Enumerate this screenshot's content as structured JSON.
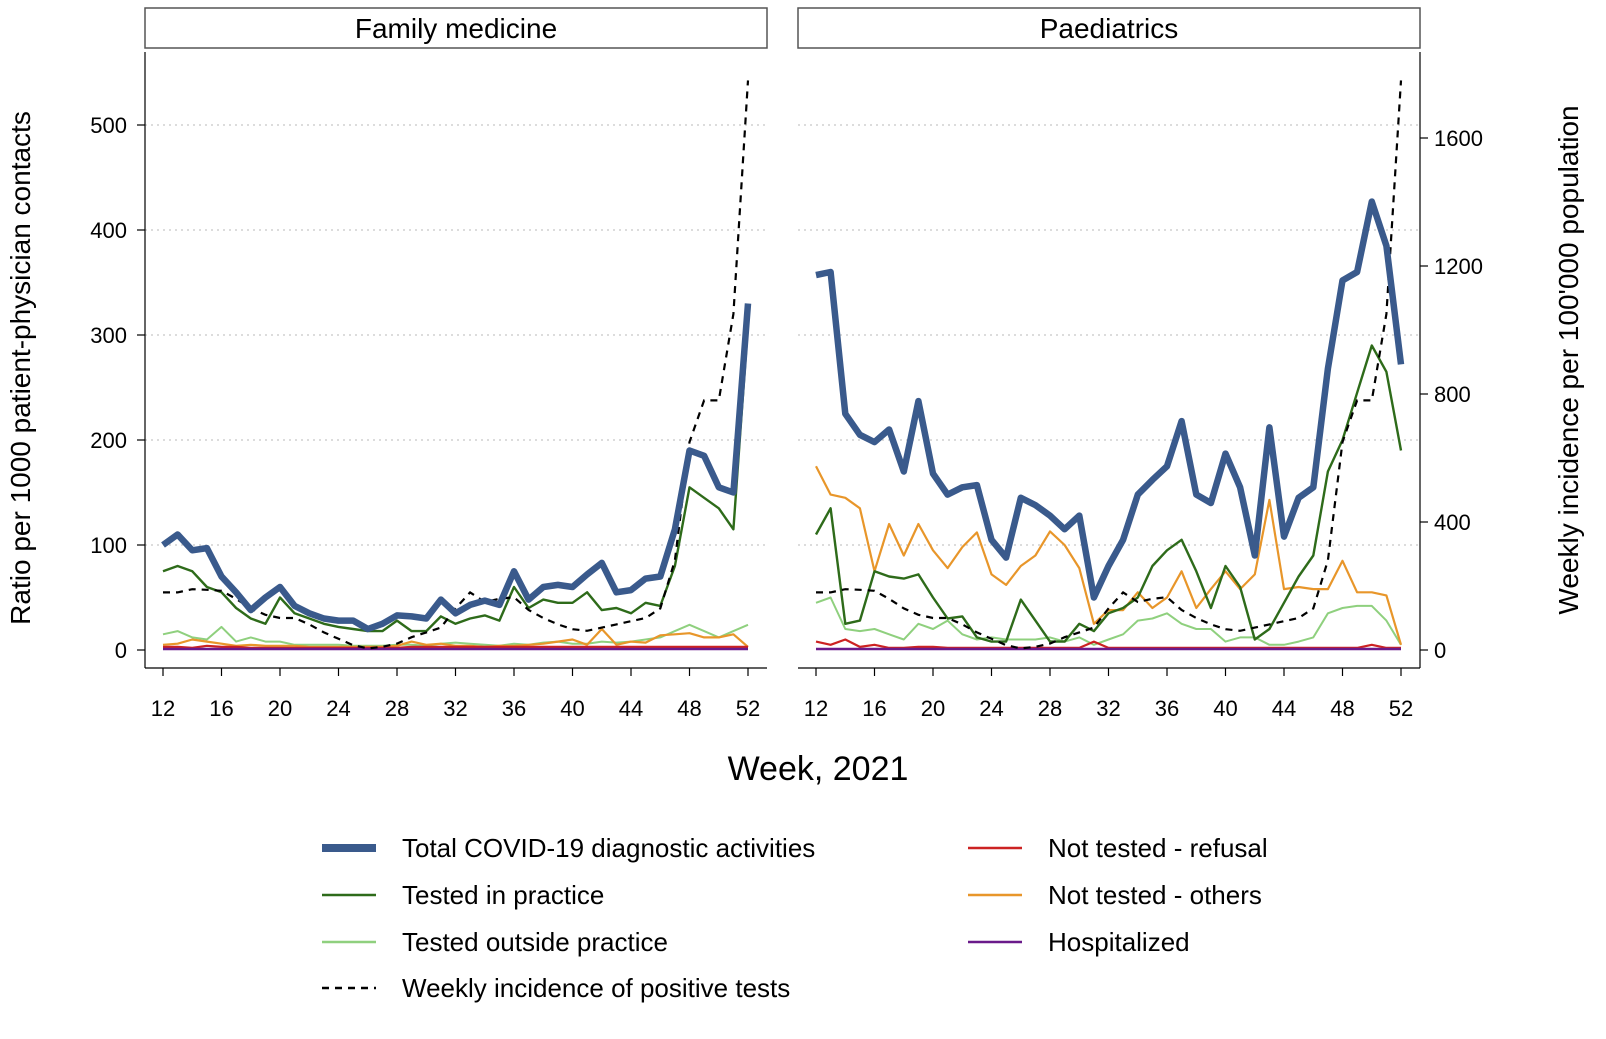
{
  "colors": {
    "total": "#3a5a8c",
    "tested_in": "#2e6b1a",
    "tested_out": "#8fd07e",
    "incidence": "#000000",
    "refusal": "#cc2222",
    "others": "#e8962a",
    "hospitalized": "#6a1a8a"
  },
  "chart_data": {
    "type": "line",
    "xlabel": "Week, 2021",
    "ylabel_left": "Ratio per 1000 patient-physician contacts",
    "ylabel_right": "Weekly incidence per 100'000 population",
    "x": [
      12,
      13,
      14,
      15,
      16,
      17,
      18,
      19,
      20,
      21,
      22,
      23,
      24,
      25,
      26,
      27,
      28,
      29,
      30,
      31,
      32,
      33,
      34,
      35,
      36,
      37,
      38,
      39,
      40,
      41,
      42,
      43,
      44,
      45,
      46,
      47,
      48,
      49,
      50,
      51,
      52
    ],
    "x_ticks": [
      "12",
      "16",
      "20",
      "24",
      "28",
      "32",
      "36",
      "40",
      "44",
      "48",
      "52"
    ],
    "xlim": [
      11,
      53
    ],
    "ylim_left": [
      0,
      560
    ],
    "y_ticks_left": [
      "0",
      "100",
      "200",
      "300",
      "400",
      "500"
    ],
    "ylim_right": [
      0,
      1800
    ],
    "y_ticks_right": [
      "0",
      "400",
      "800",
      "1200",
      "1600"
    ],
    "grid": true,
    "legend_position": "bottom",
    "legend": [
      {
        "key": "total",
        "label": "Total COVID-19 diagnostic activities"
      },
      {
        "key": "tested_in",
        "label": "Tested in practice"
      },
      {
        "key": "tested_out",
        "label": "Tested outside practice"
      },
      {
        "key": "incidence",
        "label": "Weekly incidence of positive tests"
      },
      {
        "key": "refusal",
        "label": "Not tested - refusal"
      },
      {
        "key": "others",
        "label": "Not tested - others"
      },
      {
        "key": "hospitalized",
        "label": "Hospitalized"
      }
    ],
    "incidence": [
      180,
      180,
      190,
      188,
      185,
      160,
      130,
      110,
      100,
      100,
      80,
      55,
      35,
      15,
      5,
      10,
      20,
      40,
      55,
      70,
      130,
      180,
      150,
      160,
      165,
      125,
      100,
      80,
      65,
      60,
      70,
      80,
      90,
      100,
      130,
      280,
      650,
      780,
      780,
      1050,
      1780
    ],
    "panels": [
      {
        "title": "Family medicine",
        "series": {
          "total": [
            100,
            110,
            95,
            97,
            70,
            55,
            38,
            50,
            60,
            42,
            35,
            30,
            28,
            28,
            20,
            25,
            33,
            32,
            30,
            48,
            35,
            43,
            47,
            43,
            75,
            48,
            60,
            62,
            60,
            72,
            83,
            55,
            57,
            68,
            70,
            115,
            190,
            185,
            155,
            150,
            330
          ],
          "tested_in": [
            75,
            80,
            75,
            60,
            55,
            40,
            30,
            25,
            50,
            35,
            30,
            25,
            22,
            20,
            18,
            18,
            28,
            18,
            18,
            32,
            25,
            30,
            33,
            28,
            60,
            40,
            48,
            45,
            45,
            55,
            38,
            40,
            35,
            45,
            42,
            80,
            155,
            145,
            135,
            115,
            310
          ],
          "tested_out": [
            15,
            18,
            12,
            10,
            22,
            8,
            12,
            8,
            8,
            5,
            5,
            5,
            5,
            4,
            4,
            4,
            5,
            5,
            4,
            6,
            7,
            6,
            5,
            4,
            6,
            5,
            7,
            8,
            6,
            6,
            8,
            7,
            8,
            10,
            12,
            18,
            24,
            18,
            12,
            18,
            24
          ],
          "refusal": [
            3,
            3,
            2,
            4,
            3,
            3,
            2,
            2,
            2,
            2,
            2,
            2,
            2,
            2,
            2,
            2,
            2,
            3,
            3,
            3,
            3,
            3,
            3,
            3,
            3,
            3,
            3,
            3,
            3,
            3,
            3,
            3,
            3,
            3,
            3,
            3,
            3,
            3,
            3,
            3,
            3
          ],
          "others": [
            5,
            6,
            10,
            8,
            6,
            4,
            5,
            4,
            4,
            4,
            3,
            3,
            3,
            3,
            3,
            3,
            4,
            8,
            5,
            6,
            4,
            4,
            3,
            4,
            4,
            5,
            6,
            8,
            10,
            5,
            20,
            5,
            8,
            7,
            14,
            15,
            16,
            12,
            12,
            15,
            3
          ],
          "hospitalized": [
            1,
            1,
            1,
            1,
            1,
            1,
            1,
            1,
            1,
            1,
            1,
            1,
            1,
            1,
            1,
            1,
            1,
            1,
            1,
            1,
            1,
            1,
            1,
            1,
            1,
            1,
            1,
            1,
            1,
            1,
            1,
            1,
            1,
            1,
            1,
            1,
            1,
            1,
            1,
            1,
            1
          ]
        }
      },
      {
        "title": "Paediatrics",
        "series": {
          "total": [
            357,
            360,
            225,
            205,
            198,
            210,
            170,
            237,
            168,
            148,
            155,
            157,
            105,
            88,
            145,
            138,
            128,
            115,
            128,
            50,
            80,
            105,
            148,
            162,
            175,
            218,
            148,
            140,
            187,
            155,
            90,
            212,
            108,
            145,
            155,
            268,
            352,
            360,
            427,
            385,
            272
          ],
          "tested_in": [
            110,
            135,
            25,
            28,
            75,
            70,
            68,
            72,
            50,
            30,
            32,
            12,
            8,
            8,
            48,
            28,
            8,
            8,
            25,
            18,
            35,
            40,
            50,
            80,
            95,
            105,
            75,
            40,
            80,
            60,
            10,
            20,
            45,
            70,
            90,
            170,
            200,
            245,
            290,
            265,
            190
          ],
          "tested_out": [
            45,
            50,
            20,
            18,
            20,
            15,
            10,
            25,
            20,
            28,
            15,
            10,
            12,
            10,
            10,
            10,
            12,
            8,
            12,
            5,
            10,
            15,
            28,
            30,
            35,
            25,
            20,
            20,
            8,
            12,
            12,
            5,
            5,
            8,
            12,
            35,
            40,
            42,
            42,
            28,
            5
          ],
          "refusal": [
            8,
            5,
            10,
            3,
            5,
            2,
            2,
            3,
            3,
            2,
            2,
            2,
            2,
            2,
            2,
            2,
            2,
            2,
            2,
            8,
            2,
            2,
            2,
            2,
            2,
            2,
            2,
            2,
            2,
            2,
            2,
            2,
            2,
            2,
            2,
            2,
            2,
            2,
            5,
            2,
            2
          ],
          "others": [
            175,
            148,
            145,
            135,
            75,
            120,
            90,
            120,
            95,
            78,
            98,
            112,
            72,
            62,
            80,
            90,
            113,
            100,
            78,
            25,
            38,
            38,
            55,
            40,
            50,
            75,
            40,
            58,
            75,
            58,
            72,
            143,
            58,
            60,
            58,
            58,
            85,
            55,
            55,
            52,
            5
          ],
          "hospitalized": [
            1,
            1,
            1,
            1,
            1,
            1,
            1,
            1,
            1,
            1,
            1,
            1,
            1,
            1,
            1,
            1,
            1,
            1,
            1,
            1,
            1,
            1,
            1,
            1,
            1,
            1,
            1,
            1,
            1,
            1,
            1,
            1,
            1,
            1,
            1,
            1,
            1,
            1,
            1,
            1,
            1
          ]
        }
      }
    ]
  }
}
